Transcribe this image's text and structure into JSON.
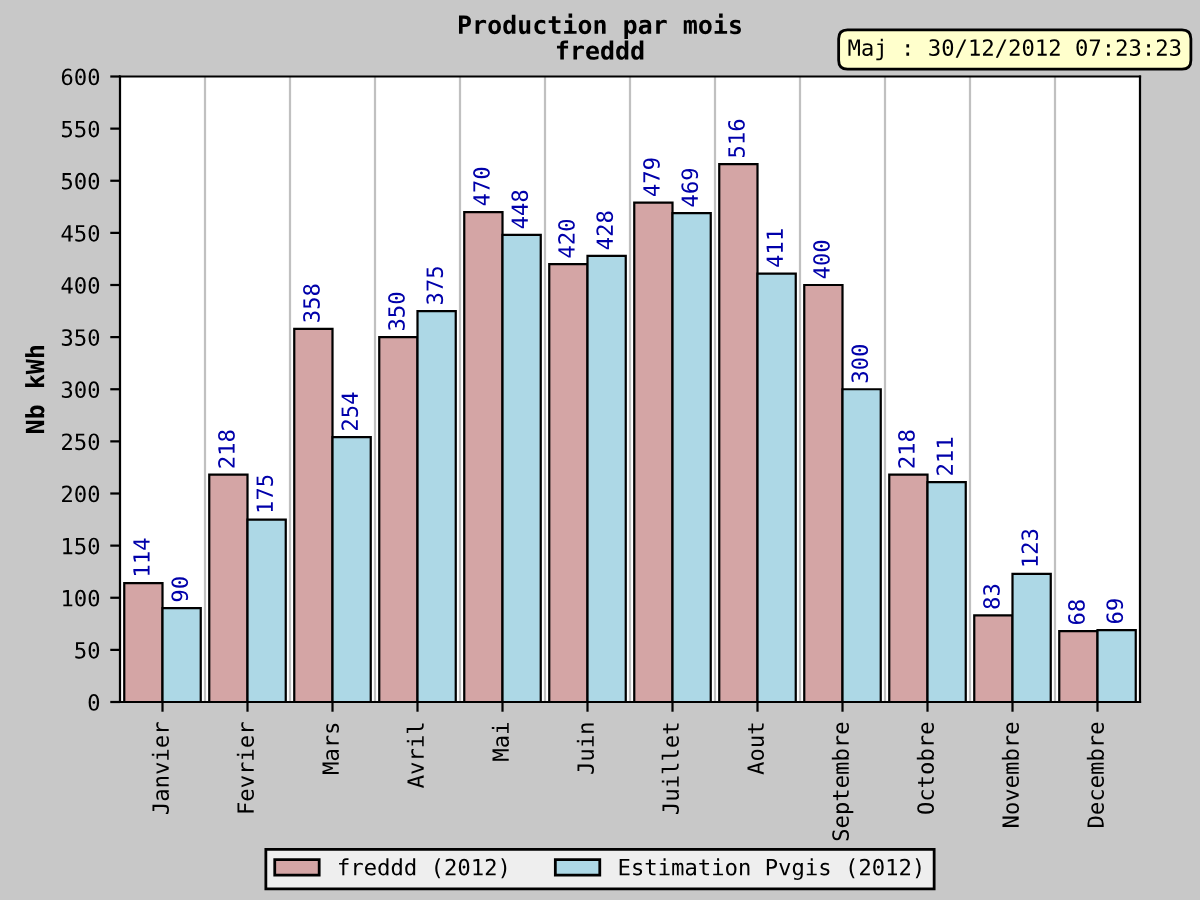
{
  "chart_data": {
    "type": "bar",
    "title": "Production par mois",
    "subtitle": "freddd",
    "ylabel": "Nb kWh",
    "annotations": [
      "Maj : 30/12/2012 07:23:23"
    ],
    "categories": [
      "Janvier",
      "Fevrier",
      "Mars",
      "Avril",
      "Mai",
      "Juin",
      "Juillet",
      "Aout",
      "Septembre",
      "Octobre",
      "Novembre",
      "Decembre"
    ],
    "series": [
      {
        "name": "freddd (2012)",
        "color": "#d4a5a5",
        "values": [
          114,
          218,
          358,
          350,
          470,
          420,
          479,
          516,
          400,
          218,
          83,
          68
        ]
      },
      {
        "name": "Estimation Pvgis (2012)",
        "color": "#add8e6",
        "values": [
          90,
          175,
          254,
          375,
          448,
          428,
          469,
          411,
          300,
          211,
          123,
          69
        ]
      }
    ],
    "ylim": [
      0,
      600
    ],
    "yticks": [
      0,
      50,
      100,
      150,
      200,
      250,
      300,
      350,
      400,
      450,
      500,
      550,
      600
    ],
    "grid": "x",
    "legend": "bottom",
    "data_labels": true
  }
}
